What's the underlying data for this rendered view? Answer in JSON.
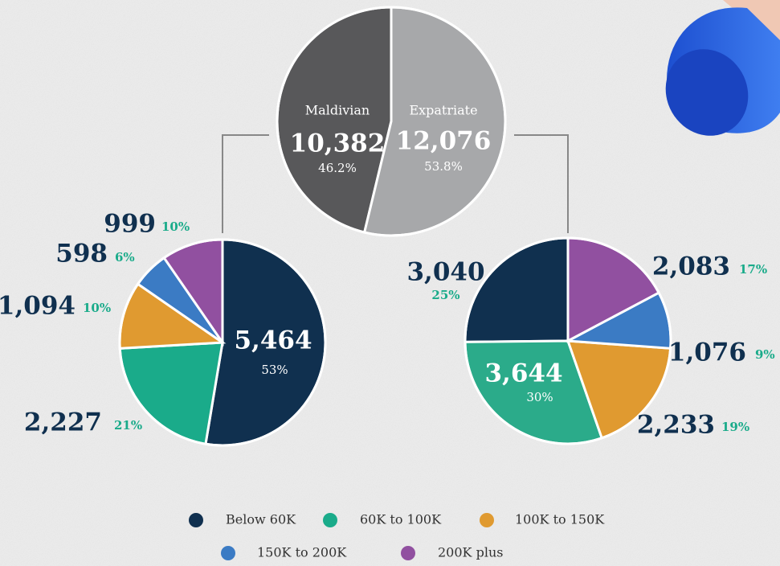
{
  "chart_data": [
    {
      "type": "pie",
      "categories": [
        "Maldivian",
        "Expatriate"
      ],
      "values": [
        10382,
        12076
      ],
      "value_labels": [
        "10,382",
        "12,076"
      ],
      "percents": [
        46.2,
        53.8
      ],
      "percent_labels": [
        "46.2%",
        "53.8%"
      ],
      "colors": [
        "#58585a",
        "#a7a8aa"
      ]
    },
    {
      "type": "pie",
      "categories": [
        "Below 60K",
        "60K to 100K",
        "100K to 150K",
        "150K to 200K",
        "200K plus"
      ],
      "values": [
        5464,
        2227,
        1094,
        598,
        999
      ],
      "value_labels": [
        "5,464",
        "2,227",
        "1,094",
        "598",
        "999"
      ],
      "percents": [
        53,
        21,
        10,
        6,
        10
      ],
      "percent_labels": [
        "53%",
        "21%",
        "10%",
        "6%",
        "10%"
      ],
      "colors": [
        "#10304f",
        "#1aab8a",
        "#e09a30",
        "#3b7bc4",
        "#9150a0"
      ]
    },
    {
      "type": "pie",
      "categories": [
        "Below 60K",
        "60K to 100K",
        "100K to 150K",
        "150K to 200K",
        "200K plus"
      ],
      "values": [
        3040,
        3644,
        2233,
        1076,
        2083
      ],
      "value_labels": [
        "3,040",
        "3,644",
        "2,233",
        "1,076",
        "2,083"
      ],
      "percents": [
        25,
        30,
        19,
        9,
        17
      ],
      "percent_labels": [
        "25%",
        "30%",
        "19%",
        "9%",
        "17%"
      ],
      "colors": [
        "#10304f",
        "#2bab8a",
        "#e09a30",
        "#3b7bc4",
        "#9150a0"
      ]
    }
  ]
}
